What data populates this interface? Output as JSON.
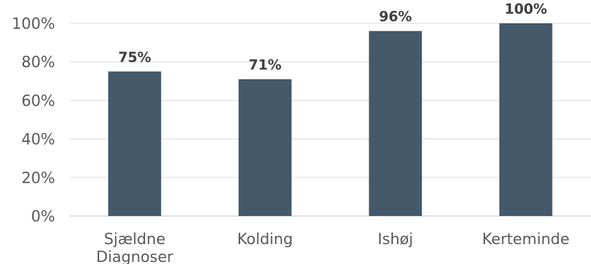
{
  "chart_data": {
    "type": "bar",
    "categories": [
      "Sjældne Diagnoser",
      "Kolding",
      "Ishøj",
      "Kerteminde"
    ],
    "category_lines": [
      [
        "Sjældne",
        "Diagnoser"
      ],
      [
        "Kolding"
      ],
      [
        "Ishøj"
      ],
      [
        "Kerteminde"
      ]
    ],
    "values": [
      75,
      71,
      96,
      100
    ],
    "value_labels": [
      "75%",
      "71%",
      "96%",
      "100%"
    ],
    "y_ticks": [
      0,
      20,
      40,
      60,
      80,
      100
    ],
    "y_tick_labels": [
      "0%",
      "20%",
      "40%",
      "60%",
      "80%",
      "100%"
    ],
    "ylim": [
      0,
      100
    ],
    "grid": true,
    "legend": "none",
    "bar_color": "#44596a",
    "title": "",
    "xlabel": "",
    "ylabel": ""
  }
}
